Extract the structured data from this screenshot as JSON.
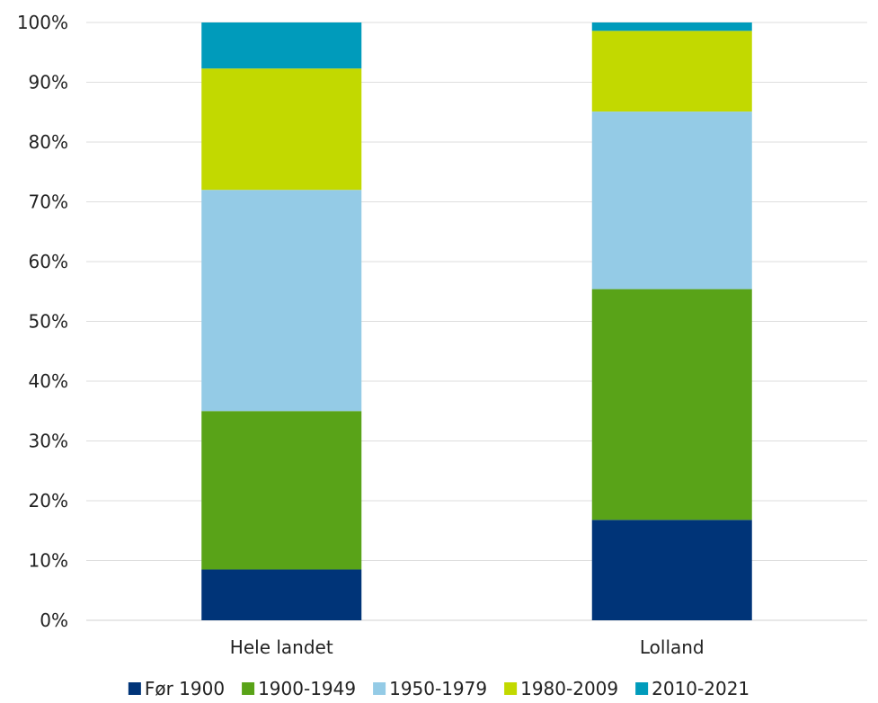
{
  "chart_data": {
    "type": "bar",
    "stacked": true,
    "categories": [
      "Hele landet",
      "Lolland"
    ],
    "ylim": [
      0,
      100
    ],
    "yticks": [
      "0%",
      "10%",
      "20%",
      "30%",
      "40%",
      "50%",
      "60%",
      "70%",
      "80%",
      "90%",
      "100%"
    ],
    "grid": true,
    "legend_position": "bottom",
    "series": [
      {
        "name": "Før 1900",
        "color": "#003478",
        "values": [
          8.5,
          16.8
        ]
      },
      {
        "name": "1900-1949",
        "color": "#59A318",
        "values": [
          26.5,
          38.6
        ]
      },
      {
        "name": "1950-1979",
        "color": "#94CBE6",
        "values": [
          37.0,
          29.7
        ]
      },
      {
        "name": "1980-2009",
        "color": "#C2D900",
        "values": [
          20.3,
          13.5
        ]
      },
      {
        "name": "2010-2021",
        "color": "#009BBB",
        "values": [
          7.7,
          1.4
        ]
      }
    ]
  }
}
